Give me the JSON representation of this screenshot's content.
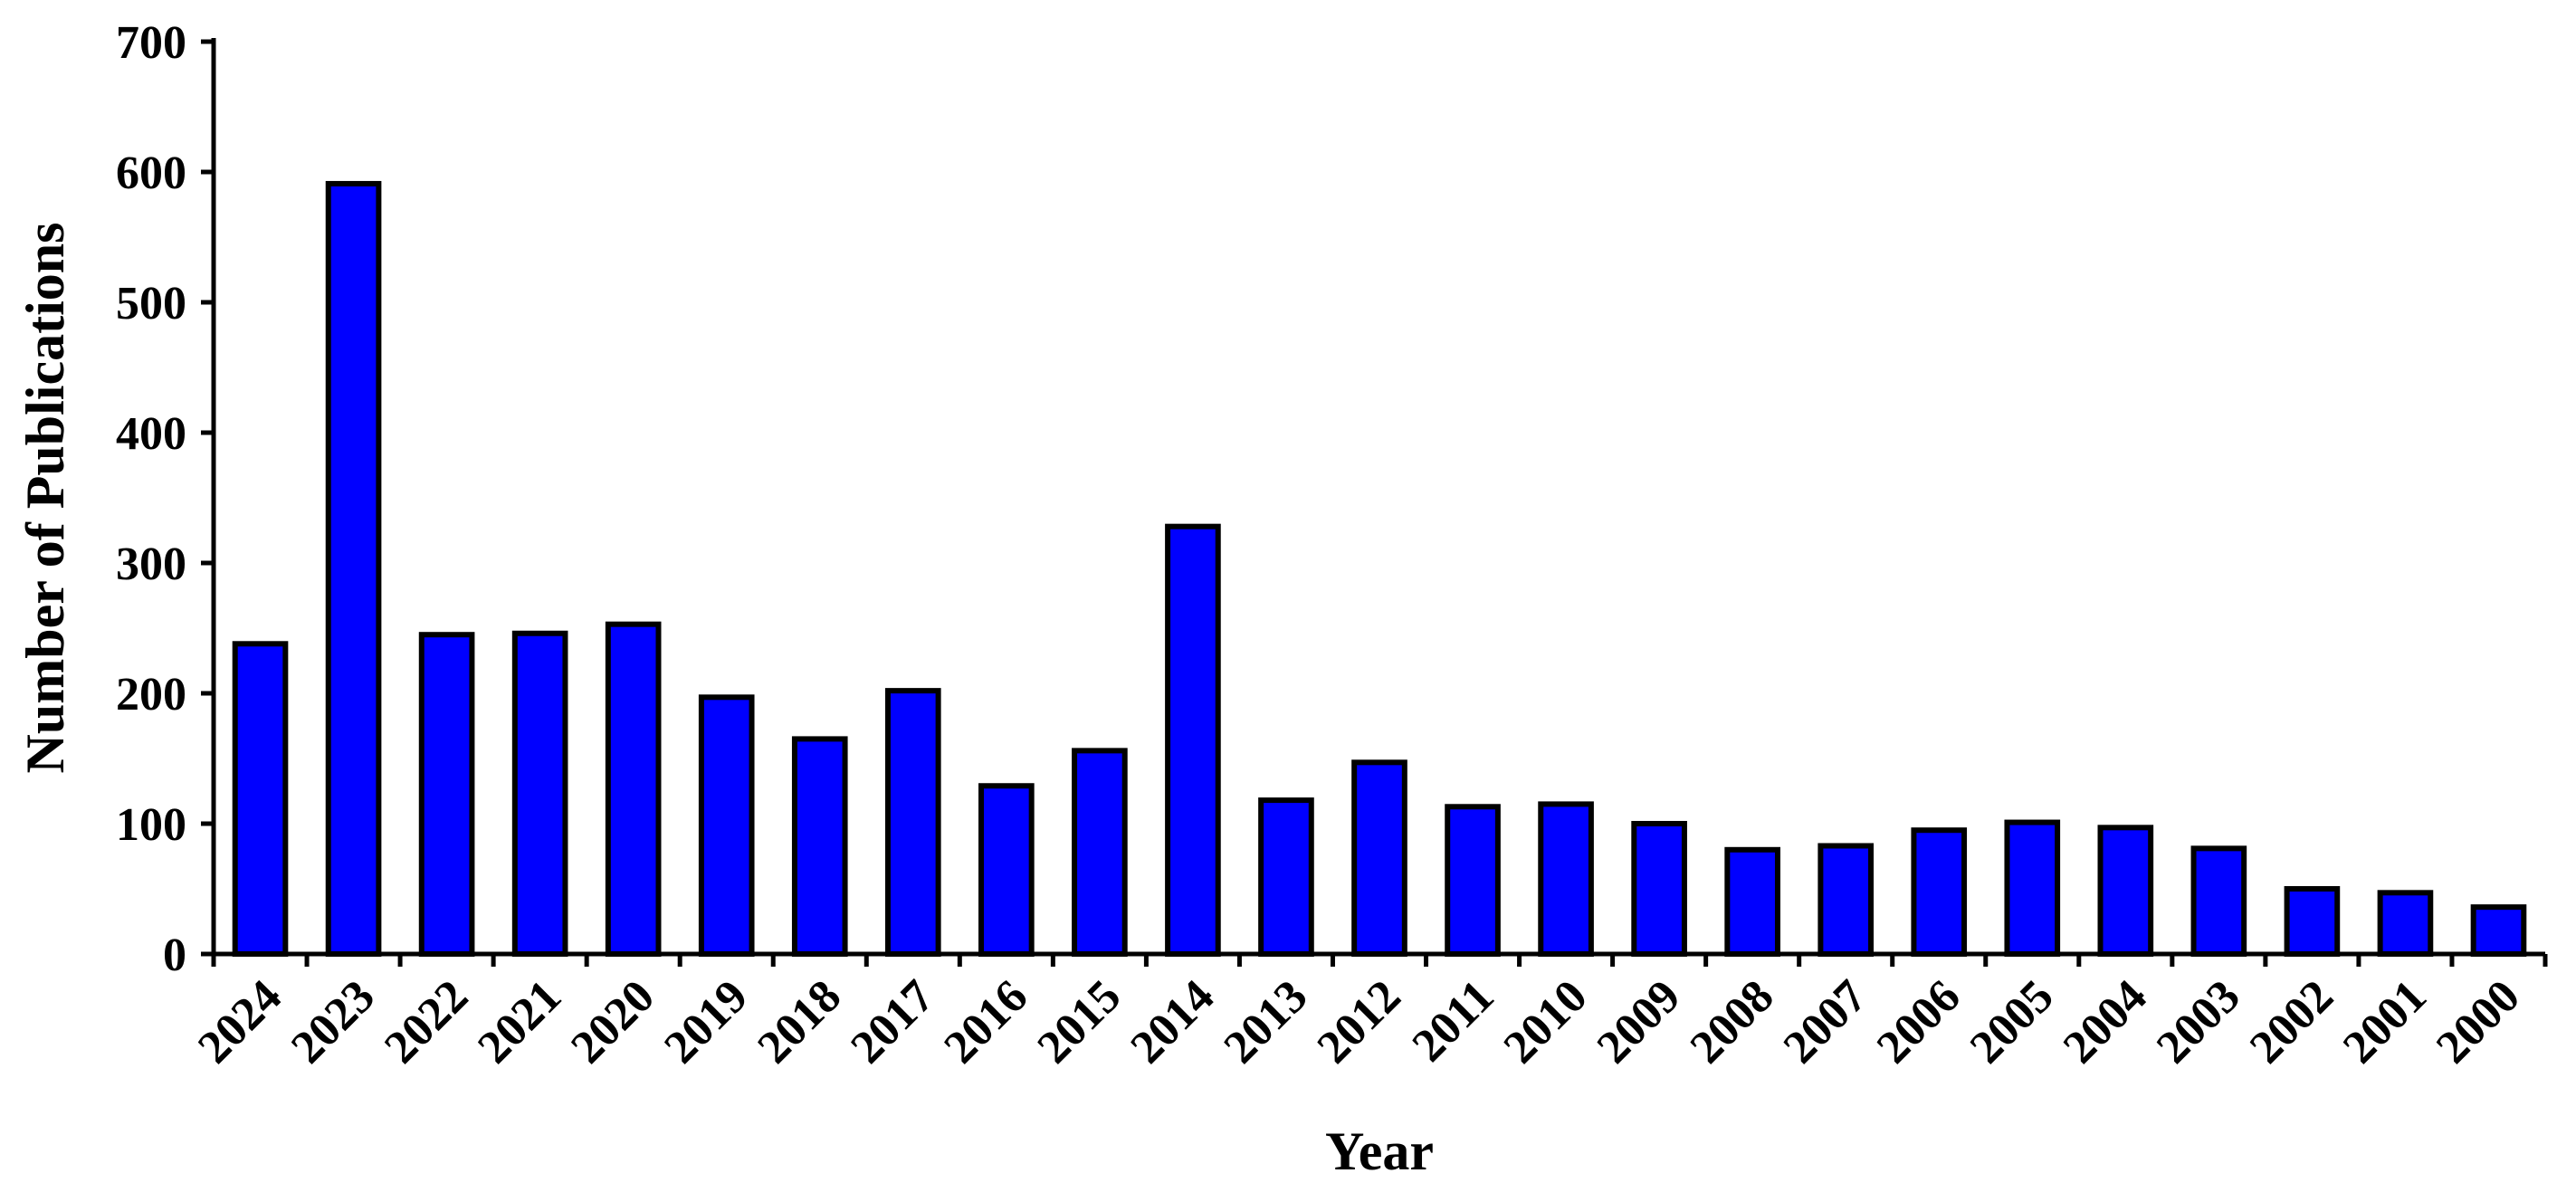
{
  "chart_data": {
    "type": "bar",
    "title": "",
    "xlabel": "Year",
    "ylabel": "Number of Publications",
    "categories": [
      "2024",
      "2023",
      "2022",
      "2021",
      "2020",
      "2019",
      "2018",
      "2017",
      "2016",
      "2015",
      "2014",
      "2013",
      "2012",
      "2011",
      "2010",
      "2009",
      "2008",
      "2007",
      "2006",
      "2005",
      "2004",
      "2003",
      "2002",
      "2001",
      "2000"
    ],
    "series": [
      {
        "values": [
          238,
          591,
          245,
          246,
          253,
          197,
          165,
          202,
          129,
          156,
          328,
          118,
          147,
          113,
          115,
          100,
          80,
          83,
          95,
          101,
          97,
          81,
          50,
          47,
          36
        ]
      }
    ],
    "ylim": [
      0,
      700
    ],
    "yticks": [
      0,
      100,
      200,
      300,
      400,
      500,
      600,
      700
    ],
    "grid": false,
    "legend": "none",
    "colors": {
      "bar_fill": "#0000ff",
      "bar_stroke": "#000000",
      "axis": "#000000"
    }
  }
}
